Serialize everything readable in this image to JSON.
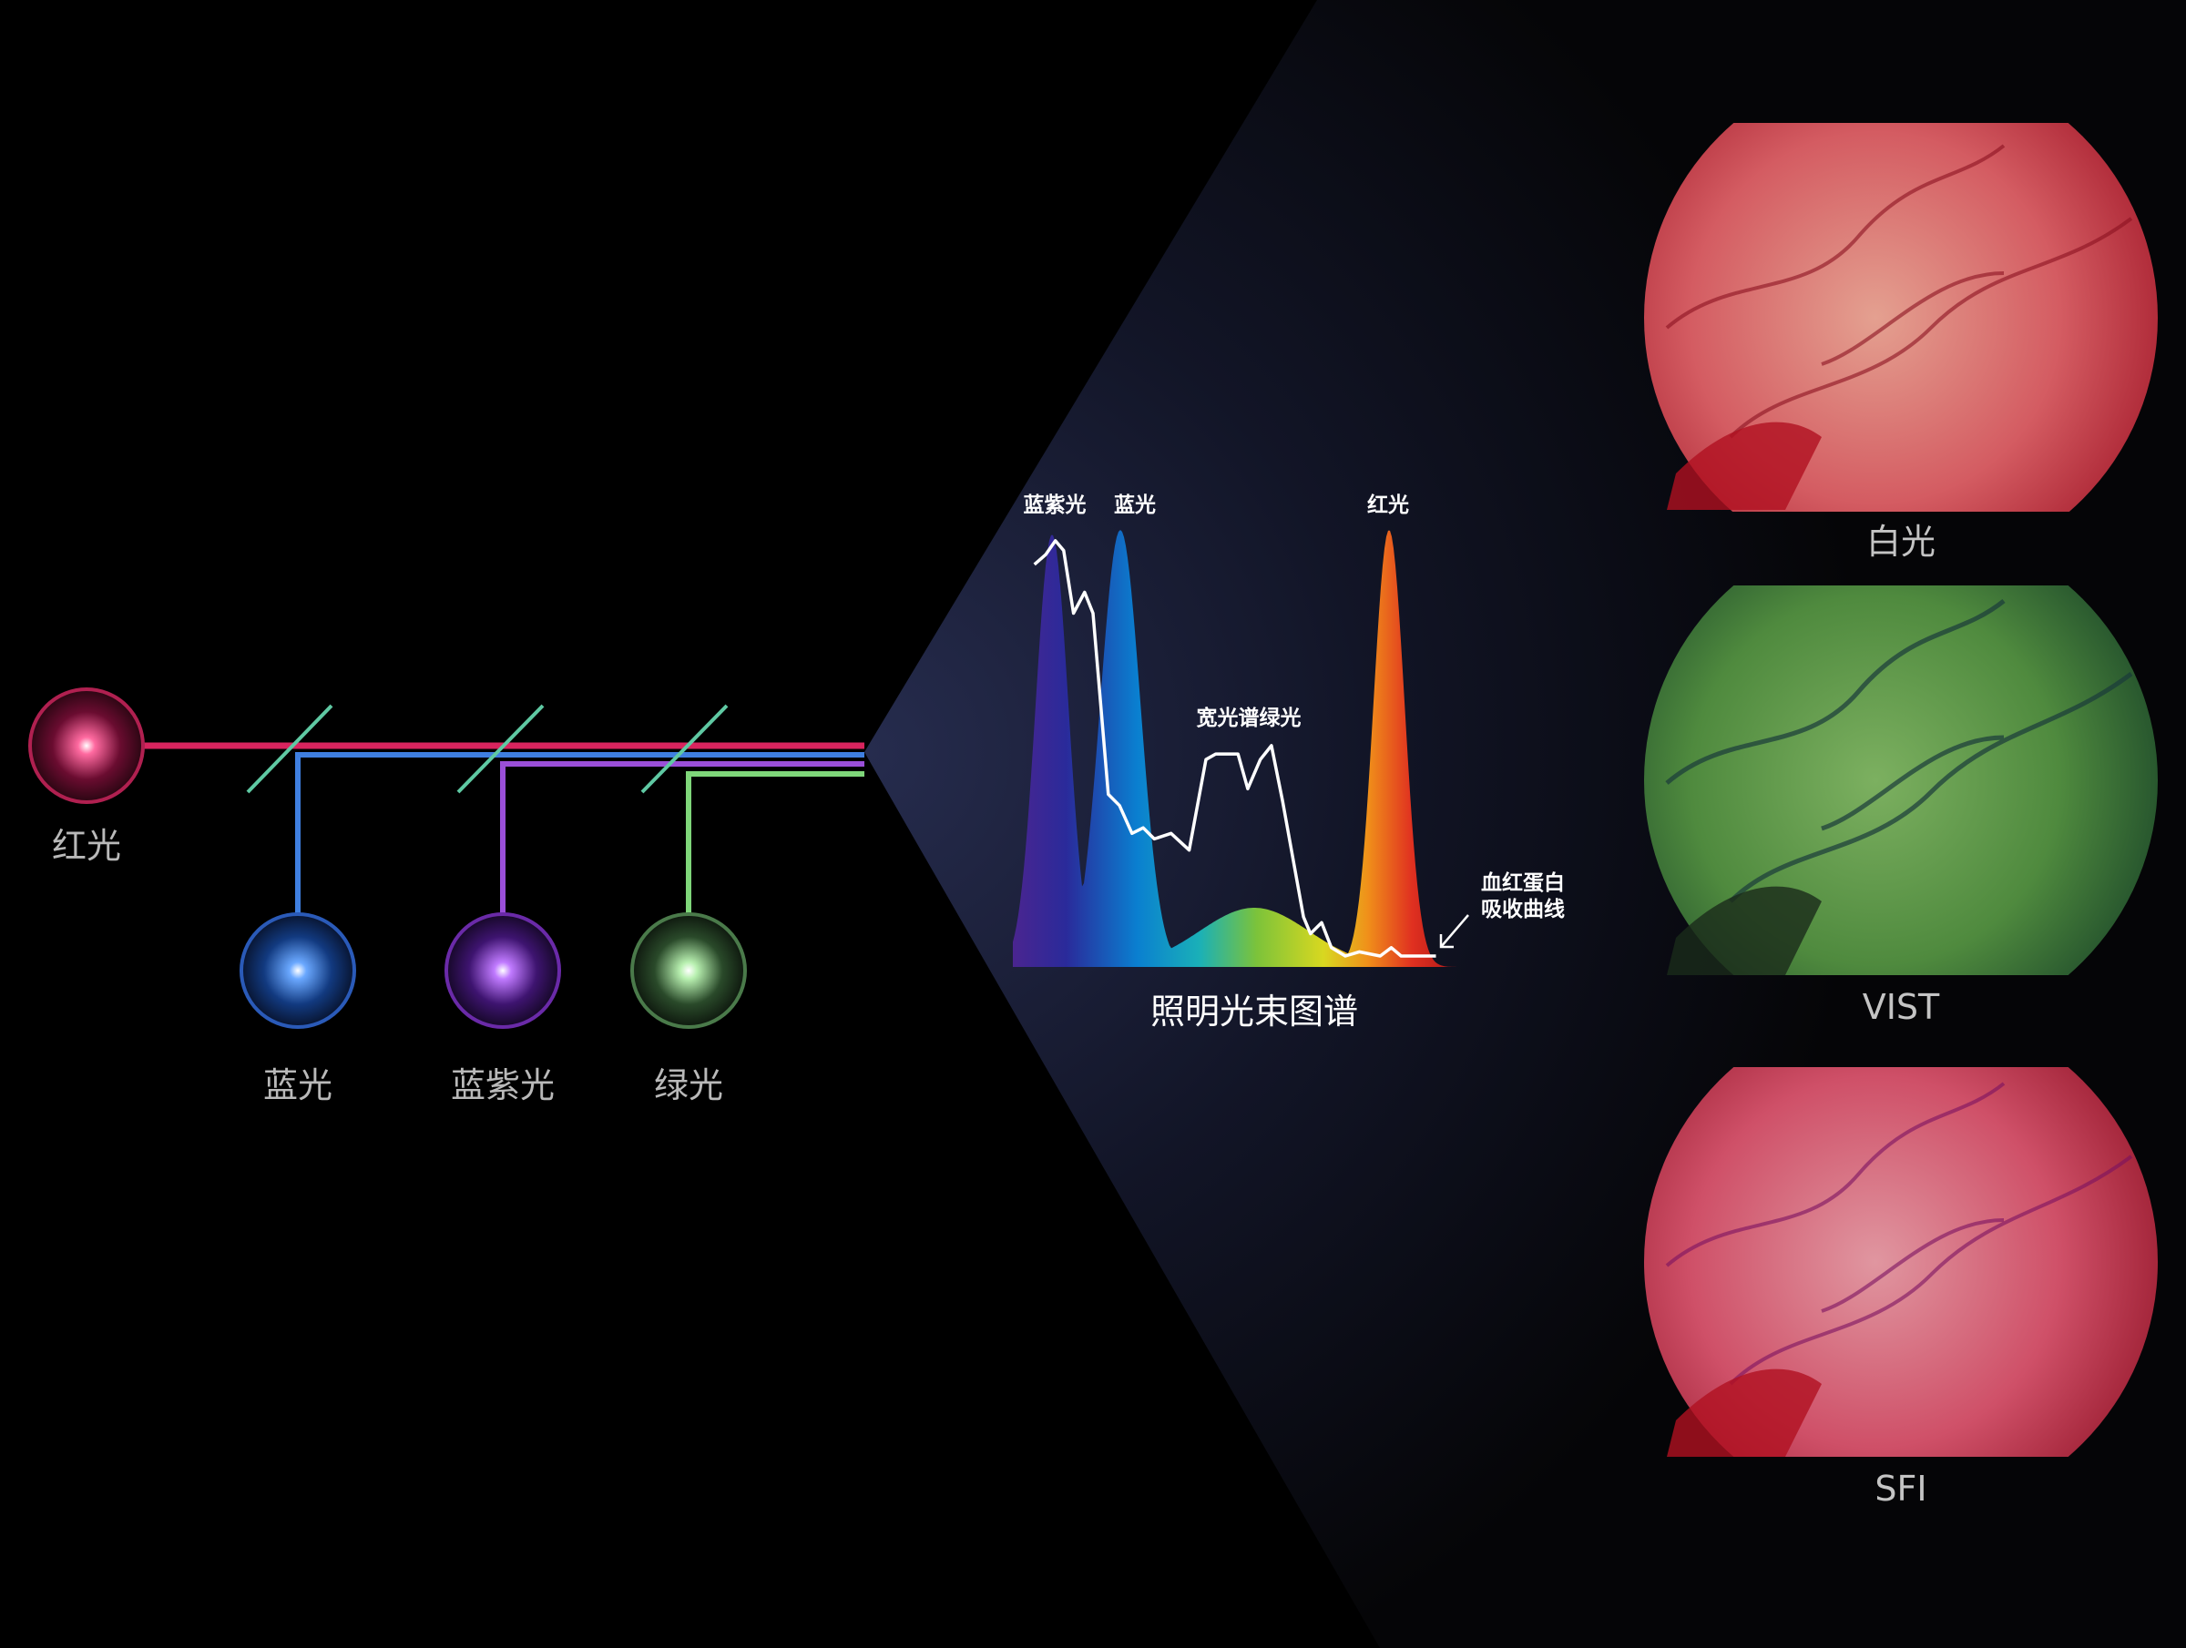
{
  "sources": [
    {
      "label": "红光",
      "color": "#d8245e"
    },
    {
      "label": "蓝光",
      "color": "#3f7fe0"
    },
    {
      "label": "蓝紫光",
      "color": "#9a4fd8"
    },
    {
      "label": "绿光",
      "color": "#7fd67a"
    }
  ],
  "spectrum": {
    "title": "照明光束图谱",
    "peak_labels": {
      "violet": "蓝紫光",
      "blue": "蓝光",
      "red": "红光",
      "green": "宽光谱绿光"
    },
    "absorption_label": [
      "血红蛋白",
      "吸收曲线"
    ]
  },
  "images": [
    {
      "label": "白光",
      "tone": "#d2666a"
    },
    {
      "label": "VIST",
      "tone": "#5f9a4c"
    },
    {
      "label": "SFI",
      "tone": "#cf5a6a"
    }
  ],
  "colors": {
    "background": "#000000",
    "cone": "#1e2340",
    "mirror": "#5fc9a3"
  }
}
